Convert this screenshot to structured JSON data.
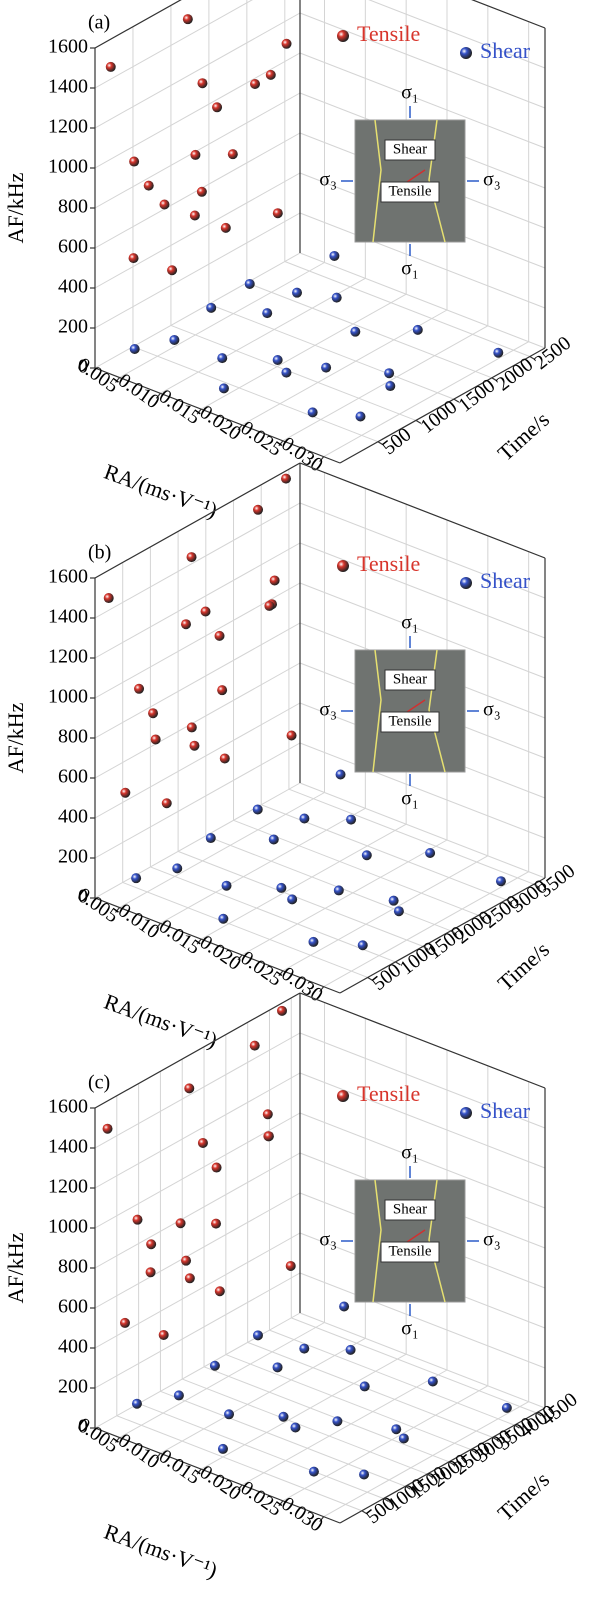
{
  "chart_data": [
    {
      "type": "scatter3d",
      "panel_label": "(a)",
      "x_label": "RA/(ms·V⁻¹)",
      "y_label": "Time/s",
      "z_label": "AF/kHz",
      "xlim": [
        0.002,
        0.032
      ],
      "xticks": [
        0.005,
        {
          "value": 0.01,
          "label": "0.010"
        },
        0.015,
        {
          "value": 0.02,
          "label": "0.020"
        },
        0.025,
        {
          "value": 0.03,
          "label": "0.030"
        }
      ],
      "ylim": [
        0,
        2700
      ],
      "yticks": [
        500,
        1000,
        1500,
        2000,
        2500
      ],
      "zlim": [
        0,
        1600
      ],
      "zticks": [
        0,
        200,
        400,
        600,
        800,
        1000,
        1200,
        1400,
        1600
      ],
      "grid": true,
      "inset_labels": [
        "σ₁",
        "σ₁",
        "σ₃",
        "σ₃",
        "Tensile",
        "Shear"
      ],
      "series": [
        {
          "name": "Tensile",
          "color": "#d8352c",
          "x": [
            0.003,
            0.004,
            0.003,
            0.005,
            0.004,
            0.003,
            0.005,
            0.004,
            0.003,
            0.004,
            0.005,
            0.003,
            0.004,
            0.005,
            0.003,
            0.004,
            0.003,
            0.004,
            0.005,
            0.003
          ],
          "y": [
            100,
            300,
            600,
            900,
            1200,
            1500,
            1800,
            2100,
            2400,
            700,
            1000,
            1300,
            1600,
            2200,
            400,
            800,
            2000,
            1100,
            1400,
            2300
          ],
          "z": [
            1500,
            1000,
            800,
            1600,
            1200,
            1000,
            1550,
            1050,
            1580,
            700,
            900,
            620,
            760,
            1200,
            480,
            350,
            1010,
            560,
            450,
            300
          ]
        },
        {
          "name": "Shear",
          "color": "#3552c9",
          "x": [
            0.005,
            0.008,
            0.012,
            0.015,
            0.018,
            0.021,
            0.024,
            0.027,
            0.03,
            0.007,
            0.01,
            0.013,
            0.016,
            0.019,
            0.022,
            0.025,
            0.028,
            0.009,
            0.006,
            0.011
          ],
          "y": [
            200,
            400,
            600,
            300,
            800,
            1000,
            500,
            1200,
            2300,
            1500,
            1800,
            2000,
            900,
            1600,
            2100,
            1400,
            700,
            2400,
            1100,
            1300
          ],
          "z": [
            100,
            150,
            80,
            40,
            60,
            90,
            20,
            50,
            30,
            180,
            120,
            100,
            70,
            110,
            60,
            40,
            20,
            160,
            130,
            140
          ]
        }
      ]
    },
    {
      "type": "scatter3d",
      "panel_label": "(b)",
      "x_label": "RA/(ms·V⁻¹)",
      "y_label": "Time/s",
      "z_label": "AF/kHz",
      "xlim": [
        0.002,
        0.032
      ],
      "xticks": [
        0.005,
        {
          "value": 0.01,
          "label": "0.010"
        },
        0.015,
        {
          "value": 0.02,
          "label": "0.020"
        },
        0.025,
        {
          "value": 0.03,
          "label": "0.030"
        }
      ],
      "ylim": [
        0,
        3700
      ],
      "yticks": [
        500,
        1000,
        1500,
        2000,
        2500,
        3000,
        3500
      ],
      "zlim": [
        0,
        1600
      ],
      "zticks": [
        0,
        200,
        400,
        600,
        800,
        1000,
        1200,
        1400,
        1600
      ],
      "grid": true,
      "inset_labels": [
        "σ₁",
        "σ₁",
        "σ₃",
        "σ₃",
        "Tensile",
        "Shear"
      ],
      "series": [
        {
          "name": "Tensile",
          "color": "#d8352c",
          "x": [
            0.003,
            0.004,
            0.003,
            0.005,
            0.004,
            0.003,
            0.005,
            0.004,
            0.003,
            0.004,
            0.005,
            0.003,
            0.004,
            0.005,
            0.003,
            0.004,
            0.003,
            0.004,
            0.005,
            0.003
          ],
          "y": [
            100,
            500,
            900,
            1300,
            1700,
            2100,
            2500,
            2900,
            3300,
            800,
            1200,
            1600,
            2000,
            2800,
            400,
            1000,
            3000,
            1500,
            1900,
            3400
          ],
          "z": [
            1500,
            1000,
            800,
            1550,
            1200,
            1000,
            1600,
            1050,
            1600,
            700,
            1230,
            620,
            760,
            1200,
            480,
            350,
            1010,
            560,
            450,
            300
          ]
        },
        {
          "name": "Shear",
          "color": "#3552c9",
          "x": [
            0.005,
            0.008,
            0.012,
            0.015,
            0.018,
            0.021,
            0.024,
            0.027,
            0.03,
            0.007,
            0.01,
            0.013,
            0.016,
            0.019,
            0.022,
            0.025,
            0.028,
            0.009,
            0.006,
            0.011
          ],
          "y": [
            300,
            600,
            900,
            400,
            1200,
            1600,
            700,
            1800,
            3200,
            2200,
            2600,
            3000,
            1300,
            2400,
            3100,
            2000,
            1000,
            3400,
            1500,
            1900
          ],
          "z": [
            100,
            150,
            80,
            40,
            60,
            90,
            20,
            50,
            30,
            180,
            120,
            100,
            70,
            110,
            60,
            40,
            20,
            200,
            130,
            140
          ]
        }
      ]
    },
    {
      "type": "scatter3d",
      "panel_label": "(c)",
      "x_label": "RA/(ms·V⁻¹)",
      "y_label": "Time/s",
      "z_label": "AF/kHz",
      "xlim": [
        0.002,
        0.032
      ],
      "xticks": [
        0.005,
        {
          "value": 0.01,
          "label": "0.010"
        },
        0.015,
        {
          "value": 0.02,
          "label": "0.020"
        },
        0.025,
        {
          "value": 0.03,
          "label": "0.030"
        }
      ],
      "ylim": [
        0,
        4700
      ],
      "yticks": [
        500,
        1000,
        1500,
        2000,
        2500,
        3000,
        3500,
        4000,
        4500
      ],
      "zlim": [
        0,
        1600
      ],
      "zticks": [
        0,
        200,
        400,
        600,
        800,
        1000,
        1200,
        1400,
        1600
      ],
      "grid": true,
      "inset_labels": [
        "σ₁",
        "σ₁",
        "σ₃",
        "σ₃",
        "Tensile",
        "Shear"
      ],
      "series": [
        {
          "name": "Tensile",
          "color": "#d8352c",
          "x": [
            0.003,
            0.004,
            0.003,
            0.005,
            0.004,
            0.003,
            0.005,
            0.004,
            0.003,
            0.004,
            0.005,
            0.003,
            0.004,
            0.005,
            0.003,
            0.004,
            0.003,
            0.004,
            0.005,
            0.003
          ],
          "y": [
            100,
            600,
            1100,
            1600,
            2100,
            2600,
            3100,
            3600,
            4100,
            900,
            1400,
            1900,
            2400,
            3400,
            500,
            1200,
            3800,
            1800,
            2300,
            4300
          ],
          "z": [
            1500,
            1000,
            800,
            1550,
            1200,
            1000,
            1580,
            1050,
            1600,
            700,
            900,
            620,
            760,
            1200,
            480,
            350,
            1010,
            560,
            450,
            300
          ]
        },
        {
          "name": "Shear",
          "color": "#3552c9",
          "x": [
            0.005,
            0.008,
            0.012,
            0.015,
            0.018,
            0.021,
            0.024,
            0.027,
            0.03,
            0.007,
            0.01,
            0.013,
            0.016,
            0.019,
            0.022,
            0.025,
            0.028,
            0.009,
            0.006,
            0.011
          ],
          "y": [
            400,
            800,
            1200,
            500,
            1600,
            2000,
            900,
            2400,
            4200,
            2800,
            3300,
            3800,
            1700,
            3000,
            4000,
            2600,
            1300,
            4400,
            2000,
            2500
          ],
          "z": [
            120,
            160,
            80,
            40,
            60,
            90,
            20,
            50,
            30,
            200,
            120,
            100,
            70,
            110,
            60,
            40,
            20,
            180,
            130,
            140
          ]
        }
      ]
    }
  ]
}
